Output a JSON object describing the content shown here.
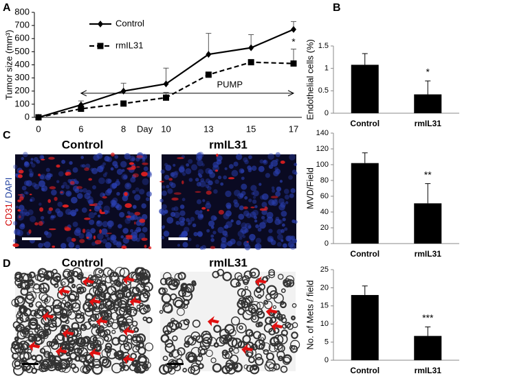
{
  "panel_labels": [
    "A",
    "B",
    "C",
    "D"
  ],
  "chart_data": [
    {
      "type": "line",
      "ylabel": "Tumor size (mm³)",
      "xlabel": "Day",
      "categories": [
        "0",
        "6",
        "8",
        "10",
        "13",
        "15",
        "17"
      ],
      "ylim": [
        0,
        800
      ],
      "yticks": [
        0,
        100,
        200,
        300,
        400,
        500,
        600,
        700,
        800
      ],
      "series": [
        {
          "name": "Control",
          "color": "#000000",
          "marker": "diamond",
          "dashed": false,
          "values": [
            0,
            95,
            200,
            255,
            480,
            530,
            670
          ],
          "errors": [
            0,
            30,
            60,
            120,
            160,
            100,
            60
          ]
        },
        {
          "name": "rmIL31",
          "color": "#000000",
          "marker": "square",
          "dashed": true,
          "values": [
            0,
            65,
            105,
            150,
            325,
            420,
            410
          ],
          "errors": [
            0,
            20,
            10,
            40,
            0,
            0,
            110
          ]
        }
      ],
      "annotations": [
        "PUMP",
        "*"
      ]
    },
    {
      "type": "bar",
      "ylabel": "Endothelial cells (%)",
      "categories": [
        "Control",
        "rmIL31"
      ],
      "values": [
        1.08,
        0.42
      ],
      "errors": [
        0.25,
        0.3
      ],
      "color": "#000000",
      "ylim": [
        0,
        1.5
      ],
      "yticks": [
        0,
        0.5,
        1,
        1.5
      ],
      "annotations": [
        "*"
      ]
    },
    {
      "type": "bar",
      "ylabel": "MVD/Field",
      "categories": [
        "Control",
        "rmIL31"
      ],
      "values": [
        102,
        51
      ],
      "errors": [
        13,
        25
      ],
      "color": "#000000",
      "ylim": [
        0,
        140
      ],
      "yticks": [
        0,
        20,
        40,
        60,
        80,
        100,
        120,
        140
      ],
      "annotations": [
        "**"
      ]
    },
    {
      "type": "bar",
      "ylabel": "No. of Mets / field",
      "categories": [
        "Control",
        "rmIL31"
      ],
      "values": [
        18,
        6.7
      ],
      "errors": [
        2.5,
        2.5
      ],
      "color": "#000000",
      "ylim": [
        0,
        25
      ],
      "yticks": [
        0,
        5,
        10,
        15,
        20,
        25
      ],
      "annotations": [
        "***"
      ]
    }
  ],
  "images": {
    "C": {
      "titles": [
        "Control",
        "rmIL31"
      ],
      "stain": [
        "CD31",
        "/ DAPI"
      ]
    },
    "D": {
      "titles": [
        "Control",
        "rmIL31"
      ]
    }
  }
}
